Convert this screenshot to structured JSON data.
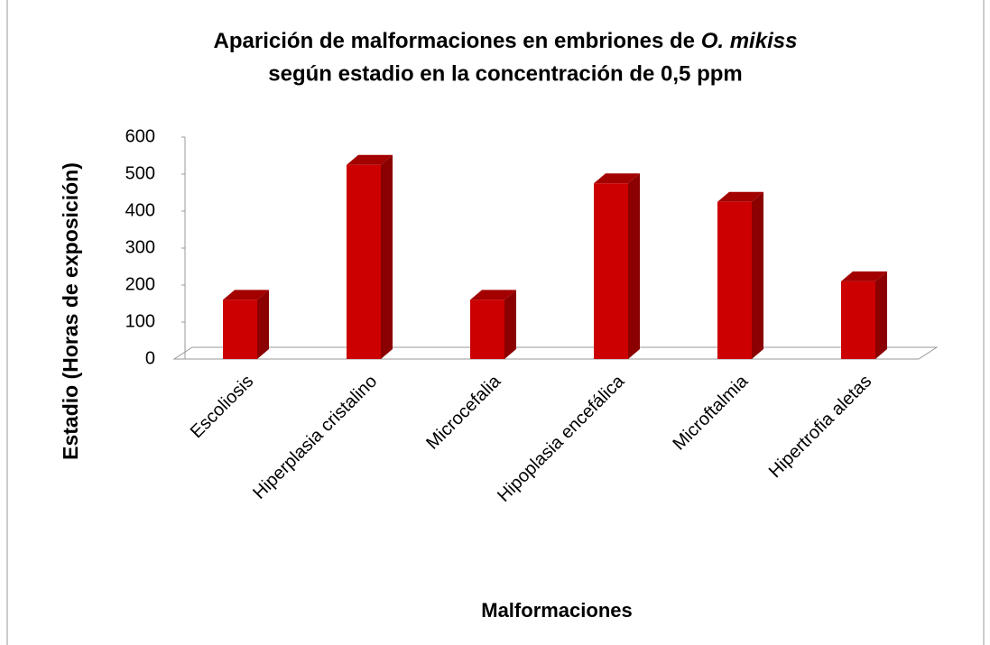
{
  "chart_data": {
    "type": "bar3d",
    "title": {
      "line1": "Aparición de malformaciones en embriones de ",
      "italic": "O. mikiss",
      "line2": "según estadio en la concentración de 0,5 ppm"
    },
    "xlabel": "Malformaciones",
    "ylabel": "Estadio (Horas de exposición)",
    "categories": [
      "Escoliosis",
      "Hiperplasia cristalino",
      "Microcefalia",
      "Hipoplasia encefálica",
      "Microftalmia",
      "Hipertrofia aletas"
    ],
    "values": [
      160,
      525,
      160,
      475,
      425,
      210
    ],
    "color": "#cc0000",
    "ylim": [
      0,
      600
    ],
    "yticks": [
      0,
      100,
      200,
      300,
      400,
      500,
      600
    ],
    "grid": false
  }
}
